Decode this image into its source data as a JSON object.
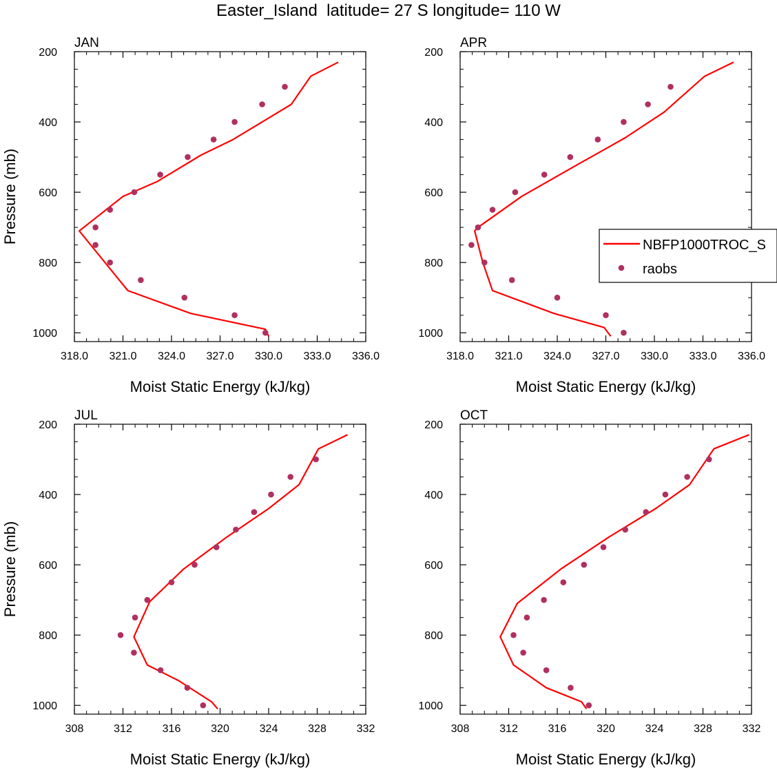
{
  "title": "Easter_Island  latitude= 27 S longitude= 110 W",
  "legend": {
    "model_label": "NBFP1000TROC_S",
    "obs_label": "raobs"
  },
  "colors": {
    "model_line": "#ff0000",
    "obs_marker": "#b03060",
    "axes": "#000000"
  },
  "chart_data": [
    {
      "type": "line",
      "panel": "JAN",
      "title": "JAN",
      "xlabel": "Moist Static Energy (kJ/kg)",
      "ylabel": "Pressure (mb)",
      "xlim": [
        318,
        336
      ],
      "ylim": [
        200,
        1025
      ],
      "y_inverted": true,
      "xticks": [
        "318.0",
        "321.0",
        "324.0",
        "327.0",
        "330.0",
        "333.0",
        "336.0"
      ],
      "yticks": [
        "200",
        "400",
        "600",
        "800",
        "1000"
      ],
      "series": [
        {
          "name": "NBFP1000TROC_S",
          "kind": "line",
          "points": [
            [
              330.0,
              1010
            ],
            [
              329.8,
              990
            ],
            [
              325.2,
              945
            ],
            [
              321.3,
              880
            ],
            [
              318.3,
              710
            ],
            [
              321.0,
              612
            ],
            [
              323.1,
              570
            ],
            [
              325.8,
              495
            ],
            [
              327.8,
              450
            ],
            [
              329.6,
              400
            ],
            [
              331.4,
              350
            ],
            [
              332.6,
              270
            ],
            [
              334.3,
              230
            ]
          ]
        },
        {
          "name": "raobs",
          "kind": "scatter",
          "points": [
            [
              329.8,
              1000
            ],
            [
              327.9,
              950
            ],
            [
              324.8,
              900
            ],
            [
              322.1,
              850
            ],
            [
              320.2,
              800
            ],
            [
              319.3,
              750
            ],
            [
              319.3,
              700
            ],
            [
              320.2,
              650
            ],
            [
              321.7,
              600
            ],
            [
              323.3,
              550
            ],
            [
              325.0,
              500
            ],
            [
              326.6,
              450
            ],
            [
              327.9,
              400
            ],
            [
              329.6,
              350
            ],
            [
              331.0,
              300
            ]
          ]
        }
      ]
    },
    {
      "type": "line",
      "panel": "APR",
      "title": "APR",
      "xlabel": "Moist Static Energy (kJ/kg)",
      "ylabel": "",
      "xlim": [
        318,
        336
      ],
      "ylim": [
        200,
        1025
      ],
      "y_inverted": true,
      "xticks": [
        "318.0",
        "321.0",
        "324.0",
        "327.0",
        "330.0",
        "333.0",
        "336.0"
      ],
      "yticks": [
        "200",
        "400",
        "600",
        "800",
        "1000"
      ],
      "legend_position": "center-right",
      "series": [
        {
          "name": "NBFP1000TROC_S",
          "kind": "line",
          "points": [
            [
              327.3,
              1010
            ],
            [
              326.9,
              985
            ],
            [
              323.8,
              945
            ],
            [
              320.0,
              880
            ],
            [
              319.4,
              800
            ],
            [
              318.9,
              710
            ],
            [
              319.1,
              700
            ],
            [
              321.8,
              612
            ],
            [
              325.3,
              520
            ],
            [
              328.2,
              445
            ],
            [
              330.6,
              372
            ],
            [
              333.1,
              270
            ],
            [
              334.9,
              230
            ]
          ]
        },
        {
          "name": "raobs",
          "kind": "scatter",
          "points": [
            [
              328.1,
              1000
            ],
            [
              327.0,
              950
            ],
            [
              324.0,
              900
            ],
            [
              321.2,
              850
            ],
            [
              319.5,
              800
            ],
            [
              318.7,
              750
            ],
            [
              319.1,
              700
            ],
            [
              320.0,
              650
            ],
            [
              321.4,
              600
            ],
            [
              323.2,
              550
            ],
            [
              324.8,
              500
            ],
            [
              326.5,
              450
            ],
            [
              328.1,
              400
            ],
            [
              329.6,
              350
            ],
            [
              331.0,
              300
            ]
          ]
        }
      ]
    },
    {
      "type": "line",
      "panel": "JUL",
      "title": "JUL",
      "xlabel": "Moist Static Energy (kJ/kg)",
      "ylabel": "Pressure (mb)",
      "xlim": [
        308,
        332
      ],
      "ylim": [
        200,
        1025
      ],
      "y_inverted": true,
      "xticks": [
        "308",
        "312",
        "316",
        "320",
        "324",
        "328",
        "332"
      ],
      "yticks": [
        "200",
        "400",
        "600",
        "800",
        "1000"
      ],
      "series": [
        {
          "name": "NBFP1000TROC_S",
          "kind": "line",
          "points": [
            [
              319.8,
              1010
            ],
            [
              319.3,
              990
            ],
            [
              316.6,
              930
            ],
            [
              314.0,
              885
            ],
            [
              312.9,
              805
            ],
            [
              314.2,
              705
            ],
            [
              317.0,
              612
            ],
            [
              320.6,
              520
            ],
            [
              324.0,
              440
            ],
            [
              326.5,
              372
            ],
            [
              328.1,
              270
            ],
            [
              330.5,
              230
            ]
          ]
        },
        {
          "name": "raobs",
          "kind": "scatter",
          "points": [
            [
              318.6,
              1000
            ],
            [
              317.3,
              950
            ],
            [
              315.1,
              900
            ],
            [
              312.9,
              850
            ],
            [
              311.8,
              800
            ],
            [
              313.0,
              750
            ],
            [
              314.0,
              700
            ],
            [
              316.0,
              650
            ],
            [
              317.9,
              600
            ],
            [
              319.7,
              550
            ],
            [
              321.3,
              500
            ],
            [
              322.8,
              450
            ],
            [
              324.2,
              400
            ],
            [
              325.8,
              350
            ],
            [
              327.9,
              300
            ]
          ]
        }
      ]
    },
    {
      "type": "line",
      "panel": "OCT",
      "title": "OCT",
      "xlabel": "Moist Static Energy (kJ/kg)",
      "ylabel": "",
      "xlim": [
        308,
        332
      ],
      "ylim": [
        200,
        1025
      ],
      "y_inverted": true,
      "xticks": [
        "308",
        "312",
        "316",
        "320",
        "324",
        "328",
        "332"
      ],
      "yticks": [
        "200",
        "400",
        "600",
        "800",
        "1000"
      ],
      "series": [
        {
          "name": "NBFP1000TROC_S",
          "kind": "line",
          "points": [
            [
              318.4,
              1010
            ],
            [
              318.0,
              990
            ],
            [
              315.1,
              950
            ],
            [
              312.4,
              885
            ],
            [
              311.3,
              805
            ],
            [
              312.7,
              710
            ],
            [
              316.3,
              612
            ],
            [
              320.3,
              520
            ],
            [
              324.1,
              440
            ],
            [
              326.9,
              372
            ],
            [
              328.9,
              270
            ],
            [
              331.8,
              230
            ]
          ]
        },
        {
          "name": "raobs",
          "kind": "scatter",
          "points": [
            [
              318.6,
              1000
            ],
            [
              317.1,
              950
            ],
            [
              315.1,
              900
            ],
            [
              313.2,
              850
            ],
            [
              312.4,
              800
            ],
            [
              313.5,
              750
            ],
            [
              314.9,
              700
            ],
            [
              316.5,
              650
            ],
            [
              318.2,
              600
            ],
            [
              319.8,
              550
            ],
            [
              321.6,
              500
            ],
            [
              323.3,
              450
            ],
            [
              324.9,
              400
            ],
            [
              326.7,
              350
            ],
            [
              328.5,
              300
            ]
          ]
        }
      ]
    }
  ]
}
